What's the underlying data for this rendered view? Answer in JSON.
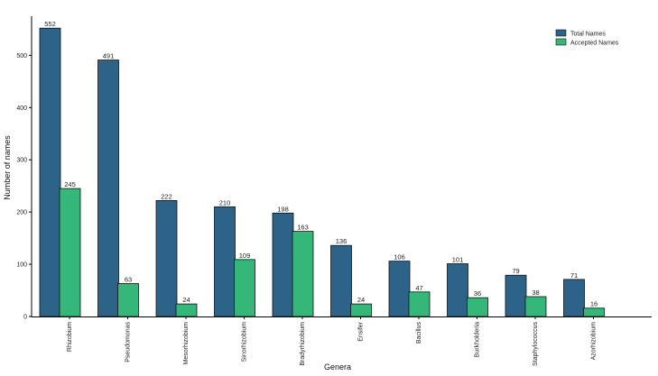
{
  "chart_data": {
    "type": "bar",
    "title": "",
    "xlabel": "Genera",
    "ylabel": "Number of names",
    "ylim": [
      0,
      580
    ],
    "yticks": [
      0,
      100,
      200,
      300,
      400,
      500
    ],
    "grid": false,
    "legend_position": "top-right",
    "categories": [
      "Rhizobium",
      "Pseudomonas",
      "Mesorhizobium",
      "Sinorhizobium",
      "Bradyrhizobium",
      "Ensifer",
      "Bacillus",
      "Burkholderia",
      "Staphylococcus",
      "Azorhizobium"
    ],
    "series": [
      {
        "name": "Total Names",
        "color": "#2e6389",
        "values": [
          552,
          491,
          222,
          210,
          198,
          136,
          106,
          101,
          79,
          71
        ]
      },
      {
        "name": "Accepted Names",
        "color": "#35b779",
        "values": [
          245,
          63,
          24,
          109,
          163,
          24,
          47,
          36,
          38,
          16
        ]
      }
    ]
  }
}
